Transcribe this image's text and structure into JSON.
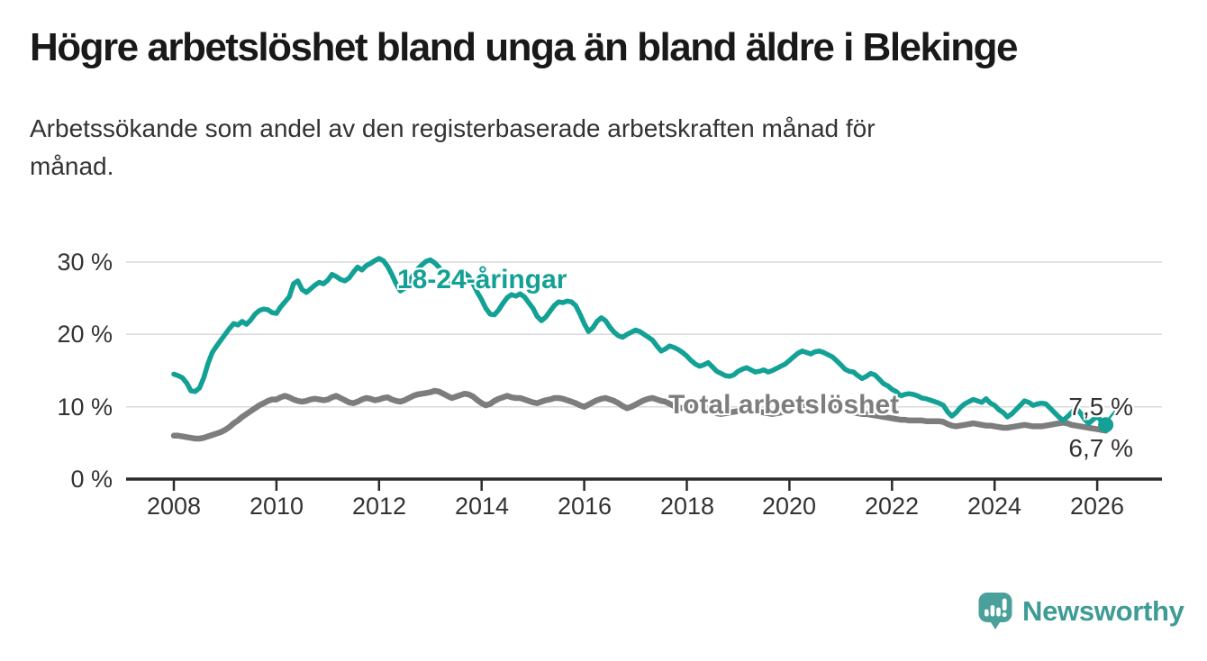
{
  "header": {
    "title": "Högre arbetslöshet bland unga än bland äldre i Blekinge",
    "subtitle": "Arbetssökande som andel av den registerbaserade arbetskraften månad för månad."
  },
  "colors": {
    "accent_teal": "#14a195",
    "line_gray": "#7d7d7d",
    "axis": "#2b2b2b",
    "grid": "#dadada",
    "logo_bubble": "#4aa09b",
    "wordmark": "#3e9b95",
    "tick_text": "#333333"
  },
  "chart_data": {
    "type": "line",
    "title": "Arbetssökande som andel av den registerbaserade arbetskraften månad för månad",
    "xlabel": "",
    "ylabel": "%",
    "x_start_year": 2008,
    "points_per_year": 12,
    "xlim": [
      2007.07,
      2027.26
    ],
    "ylim": [
      0,
      33
    ],
    "grid": "horizontal",
    "grid_values": [
      10,
      20,
      30
    ],
    "x_ticks": [
      2008,
      2010,
      2012,
      2014,
      2016,
      2018,
      2020,
      2022,
      2024,
      2026
    ],
    "y_ticks": [
      0,
      10,
      20,
      30
    ],
    "y_tick_labels": [
      "0 %",
      "10 %",
      "20 %",
      "30 %"
    ],
    "legend_position": "inline-labels",
    "series": [
      {
        "name": "18-24-åringar",
        "color": "#14a195",
        "end_label": "7,5 %",
        "end_value": 7.5,
        "end_dot": true,
        "values": [
          14.5,
          14.3,
          14.0,
          13.3,
          12.2,
          12.1,
          12.6,
          14.0,
          16.0,
          17.5,
          18.4,
          19.2,
          20.0,
          20.8,
          21.5,
          21.3,
          21.8,
          21.4,
          22.0,
          22.8,
          23.3,
          23.5,
          23.4,
          23.0,
          22.9,
          23.8,
          24.5,
          25.2,
          27.0,
          27.4,
          26.2,
          25.8,
          26.3,
          26.8,
          27.2,
          27.0,
          27.5,
          28.3,
          28.0,
          27.6,
          27.4,
          27.8,
          28.6,
          29.3,
          28.9,
          29.5,
          29.8,
          30.2,
          30.5,
          30.2,
          29.4,
          28.3,
          27.0,
          26.0,
          26.4,
          27.3,
          28.2,
          29.0,
          29.6,
          30.1,
          30.3,
          29.9,
          29.3,
          28.5,
          27.8,
          27.2,
          27.6,
          28.2,
          28.5,
          28.0,
          27.0,
          25.8,
          24.8,
          23.6,
          22.8,
          22.7,
          23.4,
          24.3,
          25.1,
          25.5,
          25.3,
          25.6,
          25.2,
          24.4,
          23.6,
          22.5,
          21.9,
          22.4,
          23.2,
          24.0,
          24.5,
          24.4,
          24.6,
          24.5,
          24.0,
          22.8,
          21.5,
          20.4,
          20.9,
          21.8,
          22.3,
          21.9,
          21.0,
          20.3,
          19.8,
          19.6,
          20.0,
          20.3,
          20.6,
          20.4,
          20.0,
          19.6,
          19.2,
          18.4,
          17.7,
          18.0,
          18.4,
          18.2,
          17.9,
          17.5,
          17.0,
          16.4,
          15.9,
          15.6,
          15.8,
          16.1,
          15.5,
          14.9,
          14.6,
          14.3,
          14.2,
          14.4,
          14.9,
          15.2,
          15.4,
          15.1,
          14.8,
          14.9,
          15.1,
          14.8,
          15.0,
          15.3,
          15.6,
          15.9,
          16.4,
          16.9,
          17.4,
          17.7,
          17.5,
          17.3,
          17.6,
          17.7,
          17.5,
          17.2,
          16.9,
          16.4,
          15.8,
          15.2,
          14.9,
          14.8,
          14.3,
          13.9,
          14.2,
          14.6,
          14.4,
          13.8,
          13.2,
          12.9,
          12.4,
          12.1,
          11.5,
          11.7,
          11.8,
          11.7,
          11.5,
          11.2,
          11.1,
          10.9,
          10.7,
          10.5,
          10.2,
          9.3,
          8.7,
          9.2,
          9.9,
          10.4,
          10.7,
          11.0,
          10.8,
          10.6,
          11.1,
          10.5,
          10.2,
          9.6,
          9.2,
          8.6,
          9.0,
          9.6,
          10.2,
          10.8,
          10.6,
          10.2,
          10.4,
          10.5,
          10.4,
          9.8,
          9.2,
          8.6,
          8.1,
          8.6,
          9.2,
          9.8,
          9.2,
          8.3,
          7.7,
          8.2,
          8.7,
          8.0,
          7.5
        ]
      },
      {
        "name": "Total arbetslöshet",
        "color": "#7d7d7d",
        "end_label": "6,7 %",
        "end_value": 6.7,
        "end_dot": false,
        "values": [
          6.0,
          6.0,
          5.9,
          5.8,
          5.7,
          5.6,
          5.6,
          5.7,
          5.9,
          6.1,
          6.3,
          6.5,
          6.8,
          7.2,
          7.7,
          8.1,
          8.6,
          9.0,
          9.4,
          9.8,
          10.2,
          10.5,
          10.8,
          11.0,
          11.0,
          11.3,
          11.5,
          11.3,
          11.0,
          10.8,
          10.7,
          10.8,
          11.0,
          11.1,
          11.0,
          10.9,
          11.0,
          11.3,
          11.5,
          11.2,
          10.9,
          10.6,
          10.5,
          10.7,
          11.0,
          11.2,
          11.1,
          10.9,
          11.0,
          11.2,
          11.3,
          11.0,
          10.8,
          10.7,
          10.9,
          11.2,
          11.5,
          11.7,
          11.8,
          11.9,
          12.0,
          12.2,
          12.1,
          11.8,
          11.5,
          11.2,
          11.4,
          11.6,
          11.8,
          11.7,
          11.4,
          10.9,
          10.5,
          10.2,
          10.4,
          10.8,
          11.1,
          11.3,
          11.5,
          11.3,
          11.2,
          11.2,
          11.0,
          10.8,
          10.6,
          10.5,
          10.7,
          10.9,
          11.0,
          11.2,
          11.2,
          11.1,
          10.9,
          10.7,
          10.5,
          10.2,
          10.0,
          10.3,
          10.6,
          10.9,
          11.1,
          11.2,
          11.0,
          10.8,
          10.5,
          10.1,
          9.8,
          10.0,
          10.3,
          10.6,
          10.9,
          11.1,
          11.2,
          11.0,
          10.8,
          10.7,
          10.4,
          10.1,
          9.9,
          9.8,
          9.8,
          10.1,
          10.3,
          10.2,
          10.0,
          9.7,
          9.4,
          9.1,
          9.0,
          9.1,
          9.2,
          9.3,
          9.4,
          9.5,
          9.6,
          9.5,
          9.4,
          9.3,
          9.2,
          9.1,
          9.0,
          9.1,
          9.2,
          9.4,
          9.6,
          9.8,
          10.0,
          10.2,
          10.3,
          10.3,
          10.2,
          10.1,
          10.0,
          9.9,
          9.8,
          9.8,
          9.7,
          9.5,
          9.3,
          9.2,
          9.1,
          9.0,
          9.0,
          8.9,
          8.8,
          8.7,
          8.6,
          8.5,
          8.4,
          8.3,
          8.2,
          8.2,
          8.1,
          8.1,
          8.1,
          8.1,
          8.0,
          8.0,
          8.0,
          8.0,
          7.9,
          7.6,
          7.4,
          7.3,
          7.4,
          7.5,
          7.6,
          7.7,
          7.6,
          7.5,
          7.4,
          7.4,
          7.3,
          7.2,
          7.1,
          7.1,
          7.2,
          7.3,
          7.4,
          7.5,
          7.4,
          7.3,
          7.3,
          7.3,
          7.4,
          7.5,
          7.6,
          7.7,
          7.8,
          7.7,
          7.5,
          7.4,
          7.3,
          7.2,
          7.1,
          7.0,
          6.9,
          6.8,
          6.7
        ]
      }
    ]
  },
  "footer": {
    "brand": "Newsworthy"
  }
}
